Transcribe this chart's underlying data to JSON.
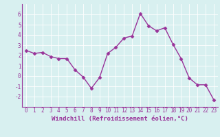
{
  "x": [
    0,
    1,
    2,
    3,
    4,
    5,
    6,
    7,
    8,
    9,
    10,
    11,
    12,
    13,
    14,
    15,
    16,
    17,
    18,
    19,
    20,
    21,
    22,
    23
  ],
  "y": [
    2.5,
    2.2,
    2.3,
    1.9,
    1.7,
    1.7,
    0.6,
    -0.1,
    -1.2,
    -0.15,
    2.2,
    2.8,
    3.7,
    3.9,
    6.1,
    4.9,
    4.4,
    4.7,
    3.1,
    1.7,
    -0.2,
    -0.85,
    -0.85,
    -2.3
  ],
  "line_color": "#993399",
  "marker": "D",
  "marker_size": 2.5,
  "line_width": 1.0,
  "xlabel": "Windchill (Refroidissement éolien,°C)",
  "ylim": [
    -3,
    7
  ],
  "xlim": [
    -0.5,
    23.5
  ],
  "yticks": [
    -2,
    -1,
    0,
    1,
    2,
    3,
    4,
    5,
    6
  ],
  "xticks": [
    0,
    1,
    2,
    3,
    4,
    5,
    6,
    7,
    8,
    9,
    10,
    11,
    12,
    13,
    14,
    15,
    16,
    17,
    18,
    19,
    20,
    21,
    22,
    23
  ],
  "bg_color": "#d8f0f0",
  "grid_color": "#b8d8d8",
  "tick_label_fontsize": 5.5,
  "xlabel_fontsize": 6.5,
  "line_color_purple": "#993399"
}
